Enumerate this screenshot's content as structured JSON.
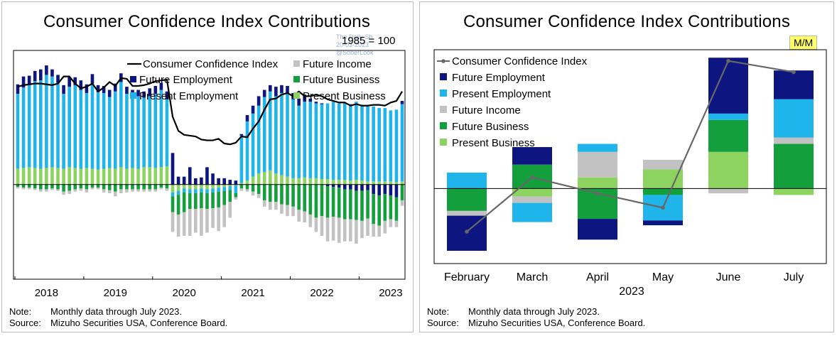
{
  "colors": {
    "future_employment": "#0d1680",
    "present_employment": "#1fb4ea",
    "future_income": "#c2c2c2",
    "future_business": "#13a03c",
    "present_business": "#8dd35f",
    "index_left": "#000000",
    "index_right": "#676767",
    "mm_badge": "#ffff66"
  },
  "left_panel": {
    "title": "Consumer Confidence Index Contributions",
    "unit": "1985 = 100",
    "watermark": [
      "The Daily Sh",
      "20-03-2023",
      "@SoberLook"
    ],
    "note_label": "Note:",
    "note_text": "Monthly data through July 2023.",
    "source_label": "Source:",
    "source_text": "Mizuho Securities USA, Conference Board."
  },
  "right_panel": {
    "title": "Consumer Confidence Index Contributions",
    "badge": "M/M",
    "note_label": "Note:",
    "note_text": "Monthly data through July 2023.",
    "source_label": "Source:",
    "source_text": "Mizuho Securities USA, Conference Board."
  },
  "chart_data": [
    {
      "type": "bar",
      "stacked": true,
      "title": "Consumer Confidence Index Contributions",
      "unit_label": "1985 = 100",
      "x_tick_labels": [
        "2018",
        "2019",
        "2020",
        "2021",
        "2022",
        "2023"
      ],
      "legend": [
        "Consumer Confidence Index",
        "Future Income",
        "Future Employment",
        "Future Business",
        "Present Employment",
        "Present Business"
      ],
      "legend_placement": "top-right",
      "grid": false,
      "start": "2018-01",
      "end": "2023-07",
      "ylim": [
        -120,
        170
      ],
      "series": [
        {
          "name": "Present Business",
          "values": [
            20,
            21,
            22,
            21,
            20,
            21,
            22,
            21,
            20,
            22,
            21,
            20,
            21,
            20,
            19,
            20,
            21,
            20,
            22,
            20,
            21,
            20,
            22,
            22,
            21,
            22,
            23,
            -10,
            -8,
            -5,
            -6,
            -6,
            -5,
            -6,
            -5,
            -4,
            -3,
            -2,
            -1,
            2,
            5,
            10,
            14,
            16,
            18,
            14,
            12,
            10,
            8,
            8,
            9,
            8,
            8,
            7,
            7,
            6,
            6,
            6,
            5,
            6,
            5,
            4,
            4,
            4,
            4,
            4,
            3,
            4
          ]
        },
        {
          "name": "Present Employment",
          "values": [
            95,
            102,
            105,
            110,
            112,
            118,
            115,
            108,
            95,
            102,
            105,
            100,
            95,
            108,
            98,
            96,
            90,
            98,
            108,
            95,
            90,
            92,
            88,
            90,
            94,
            98,
            85,
            -5,
            -5,
            -5,
            -5,
            -5,
            -5,
            -5,
            -5,
            -5,
            -5,
            -5,
            -10,
            60,
            75,
            80,
            86,
            95,
            100,
            98,
            104,
            106,
            100,
            92,
            96,
            97,
            95,
            95,
            96,
            99,
            97,
            98,
            97,
            99,
            96,
            96,
            95,
            93,
            93,
            90,
            92,
            98
          ]
        },
        {
          "name": "Future Employment",
          "values": [
            12,
            14,
            11,
            13,
            14,
            12,
            9,
            10,
            11,
            12,
            10,
            12,
            11,
            12,
            9,
            9,
            9,
            10,
            11,
            9,
            9,
            8,
            8,
            10,
            10,
            9,
            10,
            40,
            10,
            10,
            22,
            8,
            9,
            22,
            14,
            8,
            8,
            6,
            5,
            2,
            8,
            10,
            12,
            9,
            8,
            12,
            10,
            9,
            8,
            9,
            9,
            4,
            2,
            1,
            -2,
            -3,
            -4,
            -6,
            -6,
            -8,
            -8,
            -7,
            -12,
            -14,
            -12,
            -14,
            -16,
            4
          ]
        },
        {
          "name": "Future Business",
          "values": [
            -3,
            -4,
            -4,
            -5,
            -6,
            -6,
            -5,
            -6,
            -9,
            -8,
            -6,
            -5,
            -6,
            -4,
            -4,
            -6,
            -7,
            -9,
            -6,
            -6,
            -6,
            -6,
            -6,
            -6,
            -6,
            -4,
            -5,
            -20,
            -25,
            -25,
            -20,
            -20,
            -20,
            -20,
            -20,
            -20,
            -18,
            -15,
            -5,
            -5,
            -6,
            -9,
            -12,
            -20,
            -22,
            -22,
            -25,
            -26,
            -28,
            -32,
            -34,
            -38,
            -42,
            -40,
            -40,
            -38,
            -38,
            -38,
            -38,
            -37,
            -38,
            -36,
            -38,
            -38,
            -34,
            -30,
            -30,
            -20
          ]
        },
        {
          "name": "Future Income",
          "values": [
            -2,
            -2,
            -2,
            -2,
            -3,
            -3,
            -2,
            -2,
            -4,
            -4,
            -3,
            -3,
            -4,
            -2,
            -2,
            -4,
            -4,
            -6,
            -5,
            -4,
            -3,
            -3,
            -3,
            -3,
            -3,
            -2,
            -3,
            -25,
            -28,
            -30,
            -34,
            -30,
            -35,
            -30,
            -25,
            -30,
            -28,
            -20,
            -3,
            -3,
            -3,
            -5,
            -5,
            -8,
            -10,
            -10,
            -12,
            -14,
            -12,
            -15,
            -14,
            -16,
            -18,
            -25,
            -30,
            -30,
            -32,
            -28,
            -28,
            -30,
            -22,
            -22,
            -16,
            -14,
            -16,
            -10,
            -8,
            -7
          ]
        },
        {
          "name": "Consumer Confidence Index",
          "kind": "line",
          "values": [
            124,
            126,
            127,
            128,
            128,
            127,
            126,
            128,
            137,
            137,
            128,
            122,
            124,
            128,
            118,
            123,
            130,
            125,
            135,
            134,
            125,
            125,
            126,
            128,
            131,
            132,
            133,
            86,
            68,
            63,
            62,
            61,
            57,
            56,
            56,
            58,
            52,
            51,
            53,
            61,
            60,
            71,
            80,
            95,
            108,
            109,
            114,
            116,
            112,
            118,
            112,
            112,
            114,
            112,
            108,
            106,
            104,
            104,
            100,
            102,
            100,
            100,
            101,
            101,
            100,
            104,
            106,
            118
          ]
        }
      ]
    },
    {
      "type": "bar",
      "stacked": true,
      "title": "Consumer Confidence Index Contributions",
      "badge": "M/M",
      "categories": [
        "February",
        "March",
        "April",
        "May",
        "June",
        "July"
      ],
      "xlabel": "2023",
      "legend": [
        "Consumer Confidence Index",
        "Future Employment",
        "Present Employment",
        "Future Income",
        "Future Business",
        "Present Business"
      ],
      "legend_placement": "top-left",
      "grid": false,
      "ylim": [
        -4.7,
        8.7
      ],
      "series": [
        {
          "name": "Future Employment",
          "values": [
            -2.2,
            1.1,
            -1.3,
            -0.3,
            3.5,
            1.8
          ]
        },
        {
          "name": "Present Employment",
          "values": [
            1.0,
            -1.2,
            0.5,
            -1.6,
            0.4,
            2.4
          ]
        },
        {
          "name": "Future Income",
          "values": [
            -0.3,
            -0.4,
            1.6,
            0.6,
            -0.3,
            0.4
          ]
        },
        {
          "name": "Future Business",
          "values": [
            -1.4,
            1.5,
            -1.9,
            -0.4,
            2.0,
            2.8
          ]
        },
        {
          "name": "Present Business",
          "values": [
            0.0,
            -0.5,
            0.7,
            1.2,
            2.3,
            -0.4
          ]
        },
        {
          "name": "Consumer Confidence Index",
          "kind": "line",
          "values": [
            -2.7,
            0.7,
            -0.3,
            -1.2,
            8.0,
            7.3
          ]
        }
      ]
    }
  ]
}
